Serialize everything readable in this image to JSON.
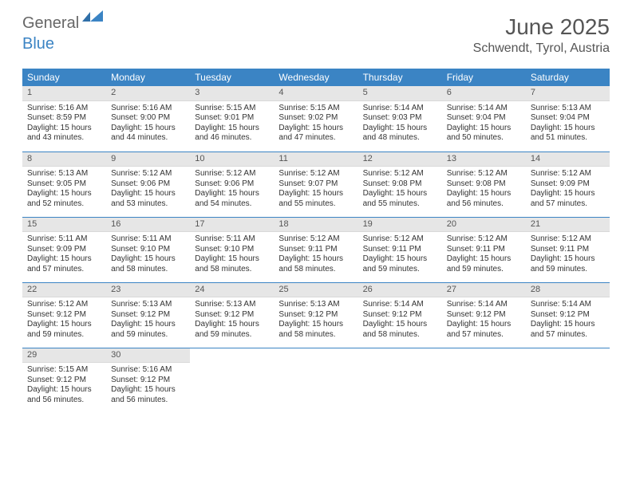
{
  "brand": {
    "part1": "General",
    "part2": "Blue"
  },
  "title": "June 2025",
  "location": "Schwendt, Tyrol, Austria",
  "colors": {
    "header_bg": "#3b84c4",
    "header_text": "#ffffff",
    "daynum_bg": "#e6e6e6",
    "border": "#3b84c4",
    "title_color": "#555555"
  },
  "weekdays": [
    "Sunday",
    "Monday",
    "Tuesday",
    "Wednesday",
    "Thursday",
    "Friday",
    "Saturday"
  ],
  "days": [
    {
      "n": 1,
      "sunrise": "5:16 AM",
      "sunset": "8:59 PM",
      "dl": "15 hours and 43 minutes."
    },
    {
      "n": 2,
      "sunrise": "5:16 AM",
      "sunset": "9:00 PM",
      "dl": "15 hours and 44 minutes."
    },
    {
      "n": 3,
      "sunrise": "5:15 AM",
      "sunset": "9:01 PM",
      "dl": "15 hours and 46 minutes."
    },
    {
      "n": 4,
      "sunrise": "5:15 AM",
      "sunset": "9:02 PM",
      "dl": "15 hours and 47 minutes."
    },
    {
      "n": 5,
      "sunrise": "5:14 AM",
      "sunset": "9:03 PM",
      "dl": "15 hours and 48 minutes."
    },
    {
      "n": 6,
      "sunrise": "5:14 AM",
      "sunset": "9:04 PM",
      "dl": "15 hours and 50 minutes."
    },
    {
      "n": 7,
      "sunrise": "5:13 AM",
      "sunset": "9:04 PM",
      "dl": "15 hours and 51 minutes."
    },
    {
      "n": 8,
      "sunrise": "5:13 AM",
      "sunset": "9:05 PM",
      "dl": "15 hours and 52 minutes."
    },
    {
      "n": 9,
      "sunrise": "5:12 AM",
      "sunset": "9:06 PM",
      "dl": "15 hours and 53 minutes."
    },
    {
      "n": 10,
      "sunrise": "5:12 AM",
      "sunset": "9:06 PM",
      "dl": "15 hours and 54 minutes."
    },
    {
      "n": 11,
      "sunrise": "5:12 AM",
      "sunset": "9:07 PM",
      "dl": "15 hours and 55 minutes."
    },
    {
      "n": 12,
      "sunrise": "5:12 AM",
      "sunset": "9:08 PM",
      "dl": "15 hours and 55 minutes."
    },
    {
      "n": 13,
      "sunrise": "5:12 AM",
      "sunset": "9:08 PM",
      "dl": "15 hours and 56 minutes."
    },
    {
      "n": 14,
      "sunrise": "5:12 AM",
      "sunset": "9:09 PM",
      "dl": "15 hours and 57 minutes."
    },
    {
      "n": 15,
      "sunrise": "5:11 AM",
      "sunset": "9:09 PM",
      "dl": "15 hours and 57 minutes."
    },
    {
      "n": 16,
      "sunrise": "5:11 AM",
      "sunset": "9:10 PM",
      "dl": "15 hours and 58 minutes."
    },
    {
      "n": 17,
      "sunrise": "5:11 AM",
      "sunset": "9:10 PM",
      "dl": "15 hours and 58 minutes."
    },
    {
      "n": 18,
      "sunrise": "5:12 AM",
      "sunset": "9:11 PM",
      "dl": "15 hours and 58 minutes."
    },
    {
      "n": 19,
      "sunrise": "5:12 AM",
      "sunset": "9:11 PM",
      "dl": "15 hours and 59 minutes."
    },
    {
      "n": 20,
      "sunrise": "5:12 AM",
      "sunset": "9:11 PM",
      "dl": "15 hours and 59 minutes."
    },
    {
      "n": 21,
      "sunrise": "5:12 AM",
      "sunset": "9:11 PM",
      "dl": "15 hours and 59 minutes."
    },
    {
      "n": 22,
      "sunrise": "5:12 AM",
      "sunset": "9:12 PM",
      "dl": "15 hours and 59 minutes."
    },
    {
      "n": 23,
      "sunrise": "5:13 AM",
      "sunset": "9:12 PM",
      "dl": "15 hours and 59 minutes."
    },
    {
      "n": 24,
      "sunrise": "5:13 AM",
      "sunset": "9:12 PM",
      "dl": "15 hours and 59 minutes."
    },
    {
      "n": 25,
      "sunrise": "5:13 AM",
      "sunset": "9:12 PM",
      "dl": "15 hours and 58 minutes."
    },
    {
      "n": 26,
      "sunrise": "5:14 AM",
      "sunset": "9:12 PM",
      "dl": "15 hours and 58 minutes."
    },
    {
      "n": 27,
      "sunrise": "5:14 AM",
      "sunset": "9:12 PM",
      "dl": "15 hours and 57 minutes."
    },
    {
      "n": 28,
      "sunrise": "5:14 AM",
      "sunset": "9:12 PM",
      "dl": "15 hours and 57 minutes."
    },
    {
      "n": 29,
      "sunrise": "5:15 AM",
      "sunset": "9:12 PM",
      "dl": "15 hours and 56 minutes."
    },
    {
      "n": 30,
      "sunrise": "5:16 AM",
      "sunset": "9:12 PM",
      "dl": "15 hours and 56 minutes."
    }
  ],
  "labels": {
    "sunrise": "Sunrise:",
    "sunset": "Sunset:",
    "daylight": "Daylight:"
  }
}
